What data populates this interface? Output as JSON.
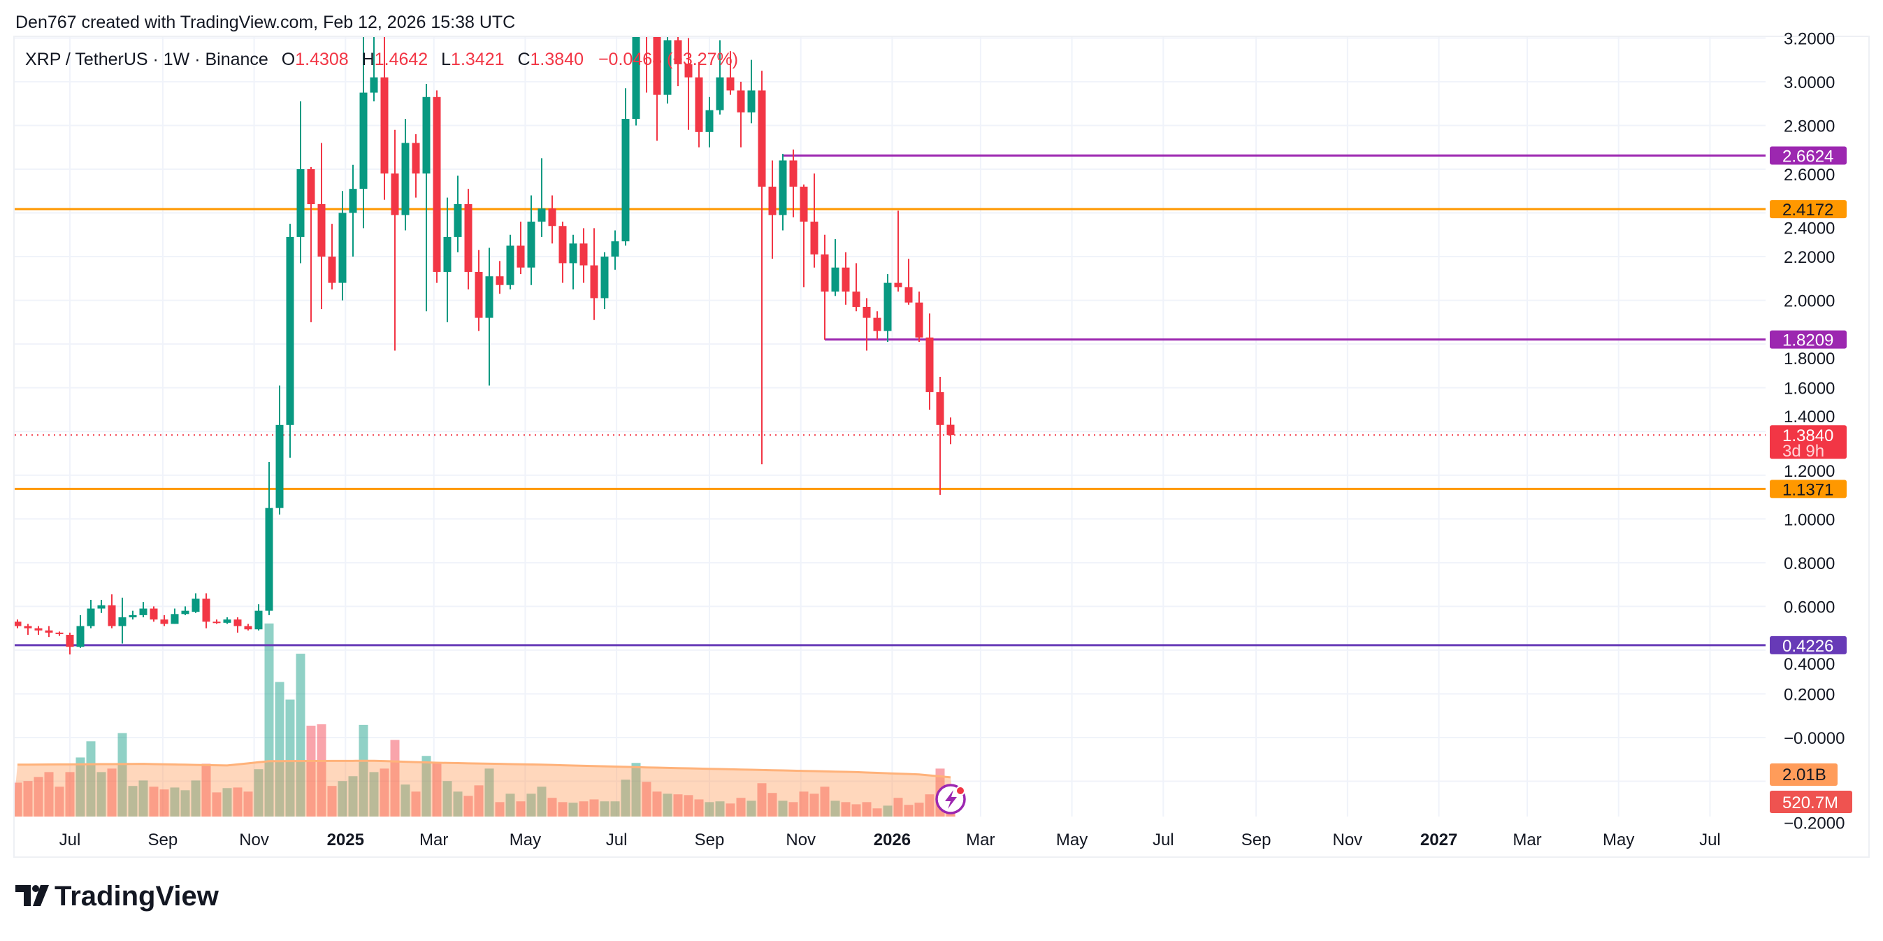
{
  "header": {
    "attribution": "Den767 created with TradingView.com, Feb 12, 2026 15:38 UTC"
  },
  "legend": {
    "symbol": "XRP / TetherUS · 1W · Binance",
    "open_label": "O",
    "open": "1.4308",
    "high_label": "H",
    "high": "1.4642",
    "low_label": "L",
    "low": "1.3421",
    "close_label": "C",
    "close": "1.3840",
    "change": "−0.0468 (−3.27%)"
  },
  "colors": {
    "up": "#089981",
    "down": "#f23645",
    "volume_up": "rgba(8,153,129,0.45)",
    "volume_down": "rgba(242,54,69,0.45)",
    "volume_ma": "#ffb27a",
    "grid": "#f0f3fa",
    "orange_level": "#ff9800",
    "purple_level": "#9c27b0",
    "violet_level": "#673ab7"
  },
  "chart_data": {
    "type": "candlestick",
    "symbol": "XRP / TetherUS",
    "interval": "1W",
    "exchange": "Binance",
    "ylim": [
      -0.2,
      3.2
    ],
    "grid": true,
    "price_ticks": [
      "3.2000",
      "3.0000",
      "2.8000",
      "2.6000",
      "2.4000",
      "2.2000",
      "2.0000",
      "1.8000",
      "1.6000",
      "1.4000",
      "1.2000",
      "1.0000",
      "0.8000",
      "0.6000",
      "0.4000",
      "0.2000",
      "−0.0000",
      "−0.2000"
    ],
    "time_ticks": [
      {
        "label": "Jul",
        "bold": false
      },
      {
        "label": "Sep",
        "bold": false
      },
      {
        "label": "Nov",
        "bold": false
      },
      {
        "label": "2025",
        "bold": true
      },
      {
        "label": "Mar",
        "bold": false
      },
      {
        "label": "May",
        "bold": false
      },
      {
        "label": "Jul",
        "bold": false
      },
      {
        "label": "Sep",
        "bold": false
      },
      {
        "label": "Nov",
        "bold": false
      },
      {
        "label": "2026",
        "bold": true
      },
      {
        "label": "Mar",
        "bold": false
      },
      {
        "label": "May",
        "bold": false
      },
      {
        "label": "Jul",
        "bold": false
      },
      {
        "label": "Sep",
        "bold": false
      },
      {
        "label": "Nov",
        "bold": false
      },
      {
        "label": "2027",
        "bold": true
      },
      {
        "label": "Mar",
        "bold": false
      },
      {
        "label": "May",
        "bold": false
      },
      {
        "label": "Jul",
        "bold": false
      }
    ],
    "candle_fields": [
      "open",
      "high",
      "low",
      "close",
      "volume_billions"
    ],
    "candles": [
      [
        0.53,
        0.54,
        0.5,
        0.51,
        1.74
      ],
      [
        0.51,
        0.52,
        0.47,
        0.5,
        1.82
      ],
      [
        0.5,
        0.51,
        0.47,
        0.49,
        2.03
      ],
      [
        0.49,
        0.51,
        0.46,
        0.48,
        2.28
      ],
      [
        0.48,
        0.485,
        0.465,
        0.475,
        1.53
      ],
      [
        0.47,
        0.48,
        0.38,
        0.415,
        2.28
      ],
      [
        0.415,
        0.56,
        0.41,
        0.51,
        3.03
      ],
      [
        0.51,
        0.63,
        0.5,
        0.59,
        3.86
      ],
      [
        0.59,
        0.63,
        0.57,
        0.605,
        2.28
      ],
      [
        0.605,
        0.655,
        0.5,
        0.51,
        2.46
      ],
      [
        0.51,
        0.64,
        0.43,
        0.55,
        4.28
      ],
      [
        0.55,
        0.58,
        0.54,
        0.56,
        1.57
      ],
      [
        0.56,
        0.62,
        0.55,
        0.59,
        1.85
      ],
      [
        0.59,
        0.6,
        0.53,
        0.54,
        1.53
      ],
      [
        0.54,
        0.56,
        0.51,
        0.52,
        1.39
      ],
      [
        0.52,
        0.59,
        0.52,
        0.565,
        1.49
      ],
      [
        0.565,
        0.6,
        0.56,
        0.58,
        1.35
      ],
      [
        0.575,
        0.66,
        0.57,
        0.635,
        1.85
      ],
      [
        0.635,
        0.66,
        0.5,
        0.53,
        2.71
      ],
      [
        0.53,
        0.54,
        0.52,
        0.525,
        1.24
      ],
      [
        0.525,
        0.55,
        0.52,
        0.54,
        1.46
      ],
      [
        0.54,
        0.55,
        0.48,
        0.51,
        1.49
      ],
      [
        0.51,
        0.52,
        0.49,
        0.495,
        1.28
      ],
      [
        0.495,
        0.61,
        0.49,
        0.58,
        2.43
      ],
      [
        0.58,
        1.26,
        0.56,
        1.05,
        9.9
      ],
      [
        1.05,
        1.61,
        1.02,
        1.43,
        6.9
      ],
      [
        1.43,
        2.35,
        1.28,
        2.29,
        6.0
      ],
      [
        2.29,
        2.91,
        2.17,
        2.6,
        8.35
      ],
      [
        2.6,
        2.61,
        1.9,
        2.44,
        4.66
      ],
      [
        2.44,
        2.72,
        1.96,
        2.2,
        4.73
      ],
      [
        2.2,
        2.35,
        2.05,
        2.08,
        1.57
      ],
      [
        2.08,
        2.5,
        2.0,
        2.4,
        1.82
      ],
      [
        2.4,
        2.62,
        2.2,
        2.51,
        2.07
      ],
      [
        2.51,
        3.3,
        2.33,
        2.95,
        4.7
      ],
      [
        2.95,
        3.4,
        2.91,
        3.02,
        2.28
      ],
      [
        3.02,
        3.35,
        2.46,
        2.58,
        2.46
      ],
      [
        2.58,
        2.78,
        1.77,
        2.39,
        3.93
      ],
      [
        2.39,
        2.83,
        2.32,
        2.72,
        1.64
      ],
      [
        2.72,
        2.76,
        2.47,
        2.58,
        1.28
      ],
      [
        2.58,
        2.99,
        1.95,
        2.93,
        3.11
      ],
      [
        2.93,
        2.96,
        2.08,
        2.13,
        2.75
      ],
      [
        2.13,
        2.47,
        1.9,
        2.29,
        1.82
      ],
      [
        2.29,
        2.57,
        2.22,
        2.44,
        1.28
      ],
      [
        2.44,
        2.51,
        2.05,
        2.13,
        1.06
      ],
      [
        2.13,
        2.23,
        1.86,
        1.92,
        1.6
      ],
      [
        1.92,
        2.24,
        1.61,
        2.11,
        2.46
      ],
      [
        2.11,
        2.18,
        2.03,
        2.07,
        0.74
      ],
      [
        2.07,
        2.3,
        2.05,
        2.25,
        1.17
      ],
      [
        2.25,
        2.36,
        2.12,
        2.15,
        0.78
      ],
      [
        2.15,
        2.48,
        2.07,
        2.36,
        1.17
      ],
      [
        2.36,
        2.65,
        2.29,
        2.42,
        1.53
      ],
      [
        2.42,
        2.48,
        2.26,
        2.34,
        0.96
      ],
      [
        2.34,
        2.36,
        2.08,
        2.17,
        0.74
      ],
      [
        2.17,
        2.3,
        2.05,
        2.26,
        0.71
      ],
      [
        2.26,
        2.33,
        2.08,
        2.16,
        0.78
      ],
      [
        2.16,
        2.33,
        1.91,
        2.01,
        0.88
      ],
      [
        2.01,
        2.22,
        1.96,
        2.2,
        0.78
      ],
      [
        2.2,
        2.32,
        2.14,
        2.27,
        0.78
      ],
      [
        2.27,
        2.97,
        2.25,
        2.83,
        1.89
      ],
      [
        2.83,
        3.66,
        2.8,
        3.45,
        2.75
      ],
      [
        3.45,
        3.65,
        2.95,
        3.25,
        1.78
      ],
      [
        3.25,
        3.33,
        2.73,
        2.94,
        1.28
      ],
      [
        2.94,
        3.34,
        2.9,
        3.19,
        1.17
      ],
      [
        3.19,
        3.28,
        2.98,
        3.08,
        1.14
      ],
      [
        3.08,
        3.2,
        2.78,
        3.02,
        1.1
      ],
      [
        3.02,
        3.09,
        2.7,
        2.77,
        0.88
      ],
      [
        2.77,
        2.93,
        2.7,
        2.87,
        0.74
      ],
      [
        2.87,
        3.19,
        2.85,
        3.02,
        0.78
      ],
      [
        3.02,
        3.14,
        2.94,
        2.96,
        0.67
      ],
      [
        2.96,
        3.0,
        2.7,
        2.86,
        0.96
      ],
      [
        2.86,
        3.1,
        2.81,
        2.96,
        0.81
      ],
      [
        2.96,
        3.05,
        1.25,
        2.52,
        1.71
      ],
      [
        2.52,
        2.64,
        2.19,
        2.39,
        1.21
      ],
      [
        2.39,
        2.67,
        2.32,
        2.64,
        0.81
      ],
      [
        2.64,
        2.69,
        2.38,
        2.52,
        0.74
      ],
      [
        2.52,
        2.53,
        2.06,
        2.36,
        1.28
      ],
      [
        2.36,
        2.58,
        2.15,
        2.21,
        1.17
      ],
      [
        2.21,
        2.3,
        1.82,
        2.04,
        1.53
      ],
      [
        2.04,
        2.28,
        2.02,
        2.15,
        0.81
      ],
      [
        2.15,
        2.22,
        1.98,
        2.04,
        0.74
      ],
      [
        2.04,
        2.17,
        1.95,
        1.97,
        0.63
      ],
      [
        1.97,
        2.01,
        1.77,
        1.92,
        0.74
      ],
      [
        1.92,
        1.95,
        1.82,
        1.86,
        0.42
      ],
      [
        1.86,
        2.12,
        1.81,
        2.08,
        0.56
      ],
      [
        2.08,
        2.41,
        2.04,
        2.06,
        0.96
      ],
      [
        2.06,
        2.19,
        1.98,
        1.99,
        0.6
      ],
      [
        1.99,
        2.04,
        1.81,
        1.83,
        0.71
      ],
      [
        1.83,
        1.94,
        1.5,
        1.58,
        1.14
      ],
      [
        1.58,
        1.65,
        1.11,
        1.43,
        2.46
      ],
      [
        1.4308,
        1.4642,
        1.3421,
        1.384,
        0.5207
      ]
    ],
    "volume_ma_points": [
      [
        0,
        2.66
      ],
      [
        12,
        2.7
      ],
      [
        20,
        2.62
      ],
      [
        24,
        2.84
      ],
      [
        34,
        2.86
      ],
      [
        40,
        2.76
      ],
      [
        50,
        2.66
      ],
      [
        60,
        2.52
      ],
      [
        70,
        2.4
      ],
      [
        80,
        2.28
      ],
      [
        86,
        2.16
      ],
      [
        89,
        2.01
      ]
    ],
    "levels": [
      {
        "price": 2.6624,
        "label": "2.6624",
        "color": "#9c27b0",
        "text_color": "#ffffff",
        "from_candle": 73
      },
      {
        "price": 2.4172,
        "label": "2.4172",
        "color": "#ff9800",
        "text_color": "#131722",
        "from_candle": null
      },
      {
        "price": 1.8209,
        "label": "1.8209",
        "color": "#9c27b0",
        "text_color": "#ffffff",
        "from_candle": 77
      },
      {
        "price": 1.1371,
        "label": "1.1371",
        "color": "#ff9800",
        "text_color": "#131722",
        "from_candle": null
      },
      {
        "price": 0.4226,
        "label": "0.4226",
        "color": "#673ab7",
        "text_color": "#ffffff",
        "from_candle": null
      }
    ],
    "last_price": {
      "price": 1.384,
      "label": "1.3840",
      "countdown": "3d 9h",
      "color": "#f23645"
    },
    "volume_labels": {
      "ma": "2.01B",
      "ma_color": "#ff9c5a",
      "current": "520.7M",
      "current_color": "#ef5350"
    }
  },
  "footer": {
    "logo_text": "TradingView"
  },
  "icons": {
    "alert": "lightning-bolt-icon"
  }
}
